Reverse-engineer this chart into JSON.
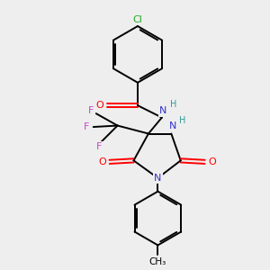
{
  "bg_color": "#eeeeee",
  "bond_color": "#000000",
  "bond_width": 1.4,
  "figsize": [
    3.0,
    3.0
  ],
  "dpi": 100,
  "xlim": [
    0,
    10
  ],
  "ylim": [
    0,
    10
  ]
}
